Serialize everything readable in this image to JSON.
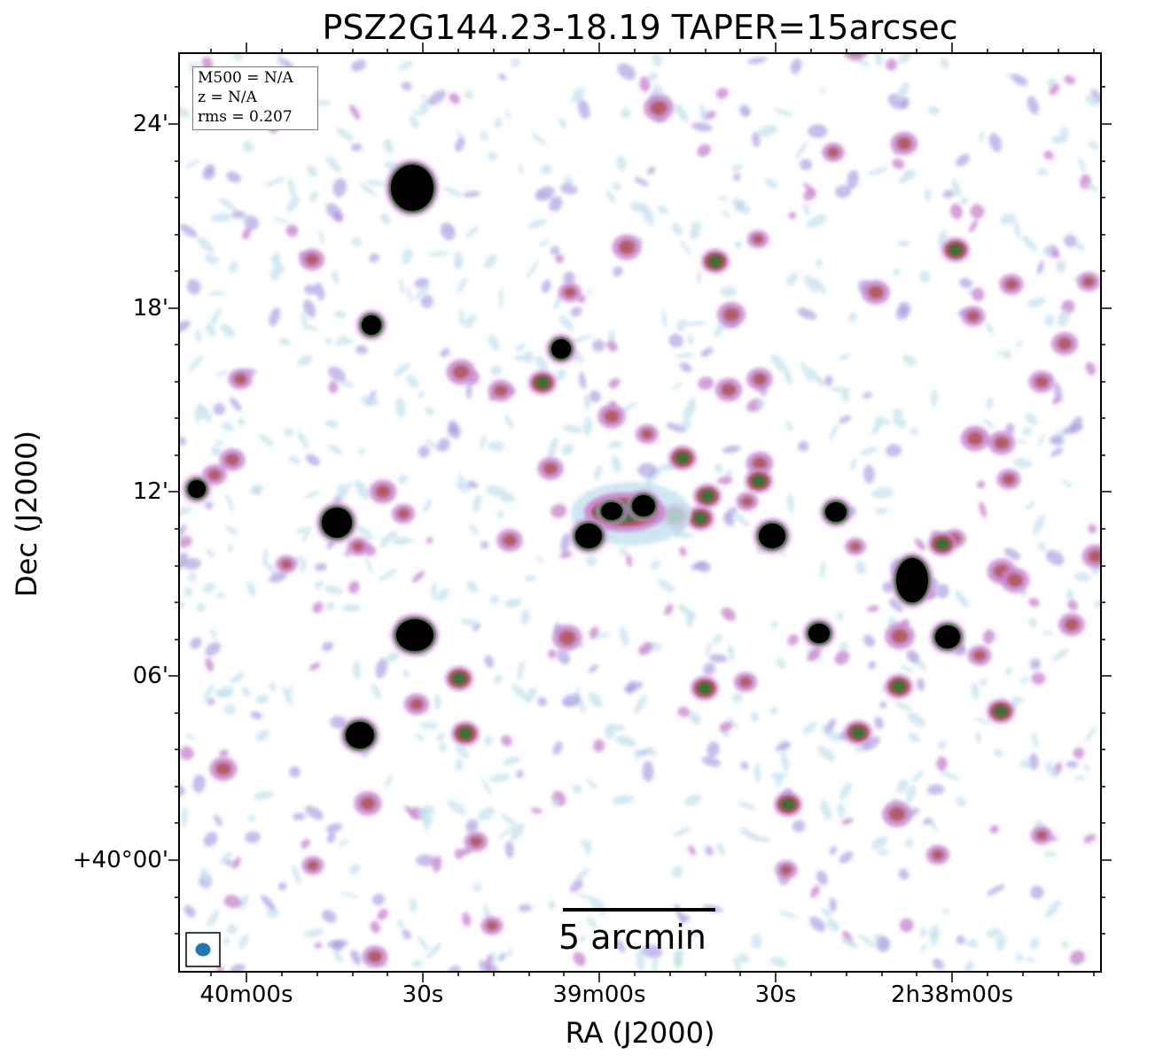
{
  "title": "PSZ2G144.23-18.19 TAPER=15arcsec",
  "xlabel": "RA (J2000)",
  "ylabel": "Dec (J2000)",
  "x_ticks": [
    "40m00s",
    "30s",
    "39m00s",
    "30s",
    "2h38m00s"
  ],
  "y_ticks": [
    "24'",
    "18'",
    "12'",
    "06'",
    "+40°00'"
  ],
  "info": {
    "m500": "M500 = N/A",
    "z": "z = N/A",
    "rms": "rms = 0.207"
  },
  "scalebar_label": "5 arcmin",
  "colors": {
    "strong": "#000000",
    "green": "#3f6e3a",
    "red": "#b0565a",
    "magenta": "#c98ad0",
    "purple": "#a99ae0",
    "lightblue": "#c5e2ee",
    "beam": "#1f77b4"
  }
}
